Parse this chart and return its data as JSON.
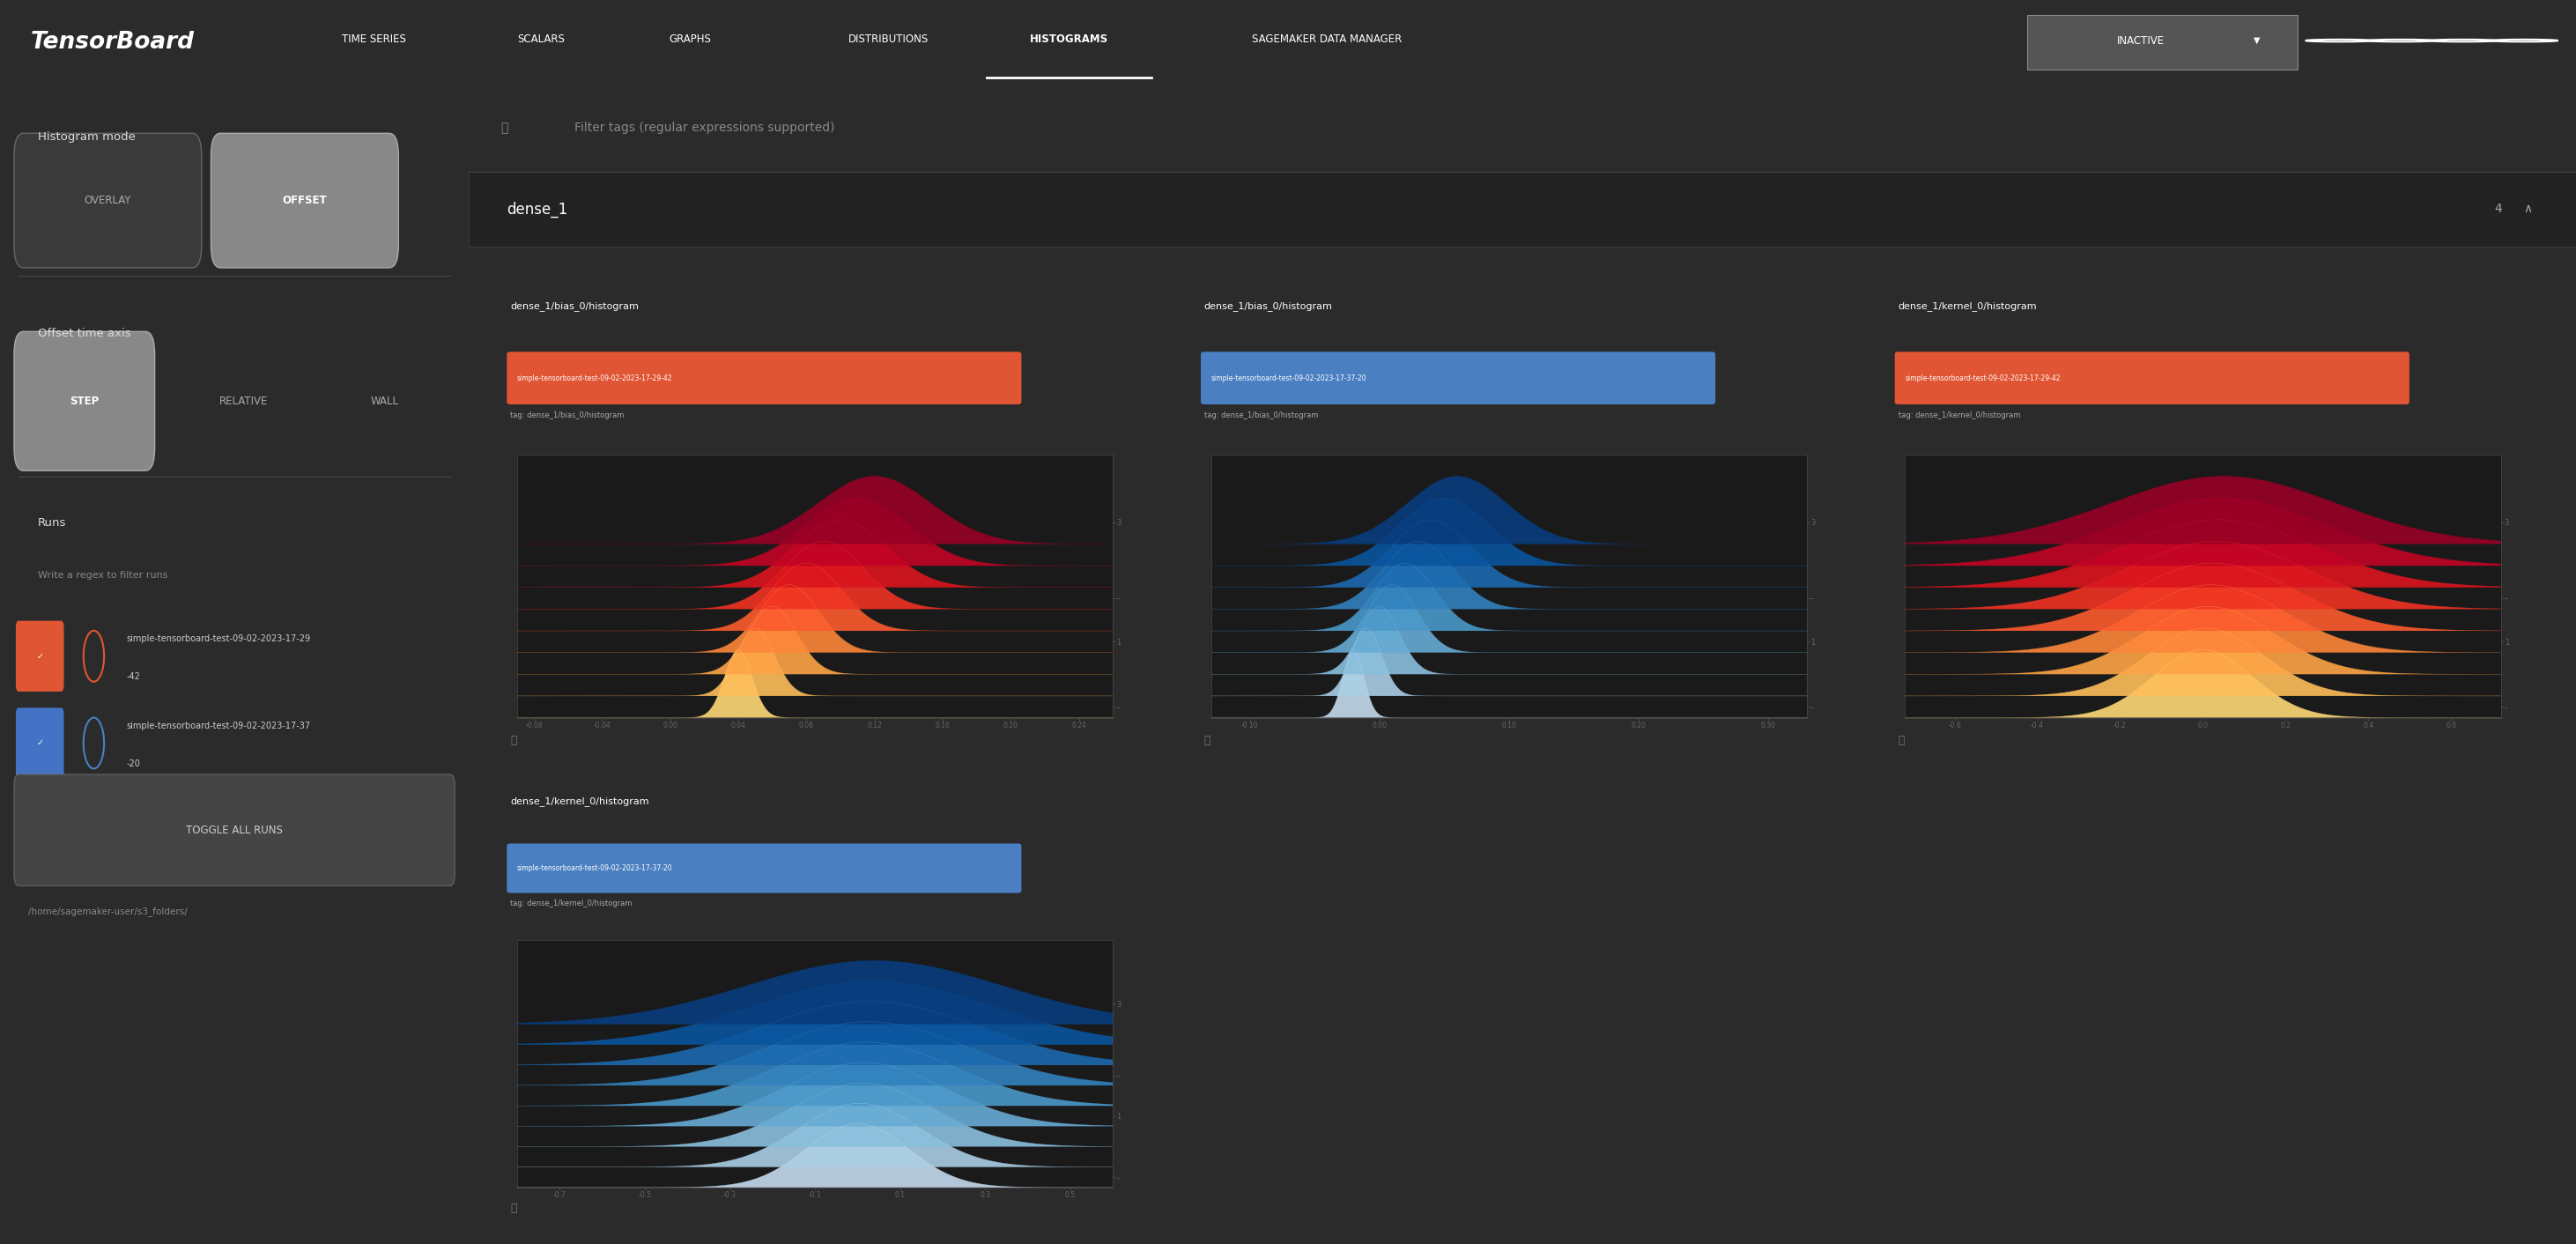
{
  "bg_color": "#2b2b2b",
  "sidebar_color": "#2e2e2e",
  "header_color": "#e8590c",
  "chart_bg": "#1e1e1e",
  "title": "TensorBoard",
  "nav_items": [
    "TIME SERIES",
    "SCALARS",
    "GRAPHS",
    "DISTRIBUTIONS",
    "HISTOGRAMS",
    "SAGEMAKER DATA MANAGER"
  ],
  "active_nav": "HISTOGRAMS",
  "inactive_label": "INACTIVE",
  "filter_placeholder": "Filter tags (regular expressions supported)",
  "histogram_mode_label": "Histogram mode",
  "overlay_label": "OVERLAY",
  "offset_label": "OFFSET",
  "offset_time_axis_label": "Offset time axis",
  "step_label": "STEP",
  "relative_label": "RELATIVE",
  "wall_label": "WALL",
  "runs_label": "Runs",
  "runs_regex_label": "Write a regex to filter runs",
  "run1": "simple-tensorboard-test-09-02-2023-17-29\n-42",
  "run2": "simple-tensorboard-test-09-02-2023-17-37\n-20",
  "run1_full": "simple-tensorboard-test-09-02-2023-17-29-42",
  "run2_full": "simple-tensorboard-test-09-02-2023-17-37-20",
  "toggle_all_runs": "TOGGLE ALL RUNS",
  "folder_path": "/home/sagemaker-user/s3_folders/",
  "group_name": "dense_1",
  "group_count": "4",
  "run1_color": "#e05533",
  "run2_color": "#4a7fc1",
  "charts": [
    {
      "title": "dense_1/bias_0/histogram",
      "run_label": "simple-tensorboard-test-09-02-2023-17-29-42",
      "tag": "tag: dense_1/bias_0/histogram",
      "run_color": "#e05533",
      "color_scheme": "orange_red",
      "shape": "spiky",
      "x_ticks": [
        "-0.08",
        "-0.04",
        "0.00",
        "0.04",
        "0.08",
        "0.12",
        "0.16",
        "0.20",
        "0.24"
      ],
      "x_range": [
        -0.09,
        0.26
      ]
    },
    {
      "title": "dense_1/bias_0/histogram",
      "run_label": "simple-tensorboard-test-09-02-2023-17-37-20",
      "tag": "tag: dense_1/bias_0/histogram",
      "run_color": "#4a7fc1",
      "color_scheme": "blue",
      "shape": "spiky",
      "x_ticks": [
        "-0.10",
        "0.00",
        "0.10",
        "0.20",
        "0.30"
      ],
      "x_range": [
        -0.13,
        0.33
      ]
    },
    {
      "title": "dense_1/kernel_0/histogram",
      "run_label": "simple-tensorboard-test-09-02-2023-17-29-42",
      "tag": "tag: dense_1/kernel_0/histogram",
      "run_color": "#e05533",
      "color_scheme": "orange_red",
      "shape": "smooth",
      "x_ticks": [
        "-0.6",
        "-0.4",
        "-0.2",
        "0.0",
        "0.2",
        "0.4",
        "0.6"
      ],
      "x_range": [
        -0.72,
        0.72
      ]
    },
    {
      "title": "dense_1/kernel_0/histogram",
      "run_label": "simple-tensorboard-test-09-02-2023-17-37-20",
      "tag": "tag: dense_1/kernel_0/histogram",
      "run_color": "#4a7fc1",
      "color_scheme": "blue",
      "shape": "smooth",
      "x_ticks": [
        "-0.7",
        "-0.5",
        "-0.3",
        "-0.1",
        "0.1",
        "0.3",
        "0.5"
      ],
      "x_range": [
        -0.8,
        0.6
      ]
    }
  ]
}
